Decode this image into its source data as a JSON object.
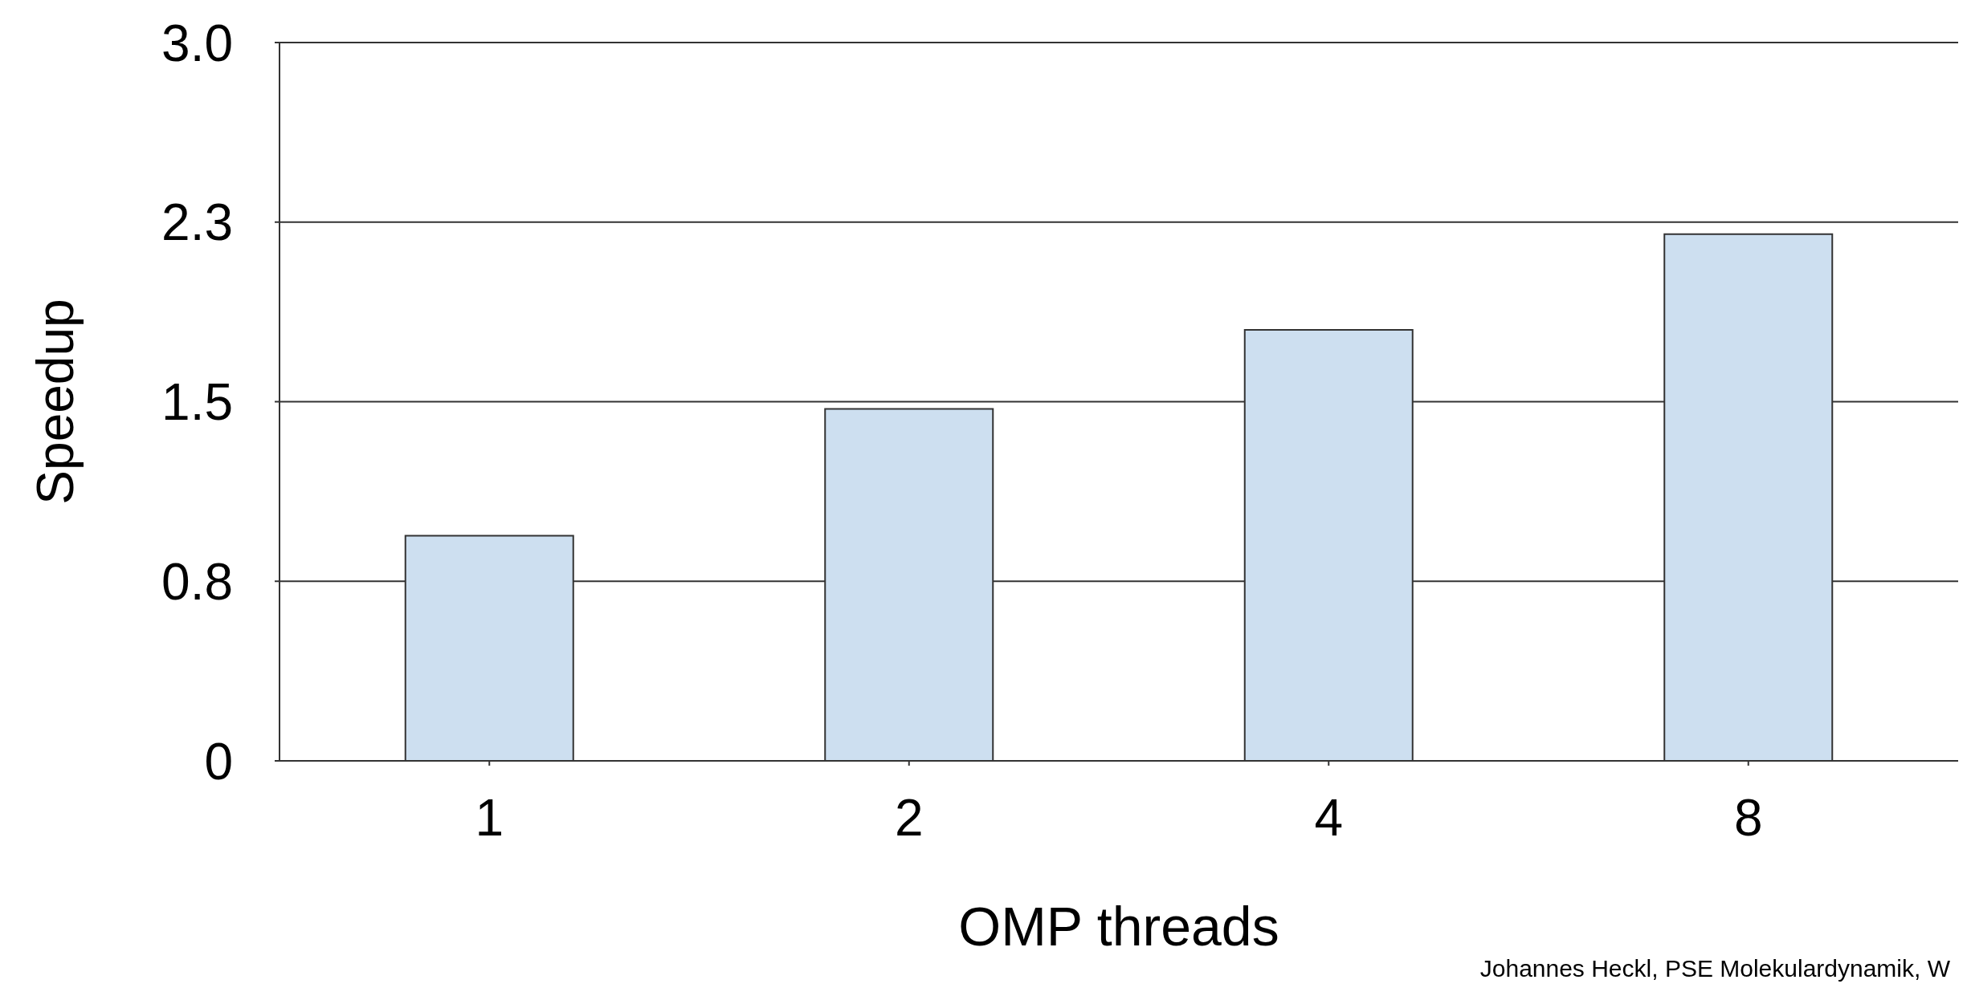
{
  "chart_data": {
    "type": "bar",
    "xlabel": "OMP threads",
    "ylabel": "Speedup",
    "categories": [
      "1",
      "2",
      "4",
      "8"
    ],
    "values": [
      0.94,
      1.47,
      1.8,
      2.2
    ],
    "color": "#cddff0",
    "ylim": [
      0,
      3
    ],
    "yticks": [
      0,
      {
        "value": 0.75,
        "label": "0.8"
      },
      1.5,
      {
        "value": 2.25,
        "label": "2.3"
      },
      {
        "value": 3,
        "label": "3.0"
      }
    ],
    "grid": "y",
    "annotations": [
      "Johannes Heckl, PSE Molekulardynamik, W"
    ]
  }
}
